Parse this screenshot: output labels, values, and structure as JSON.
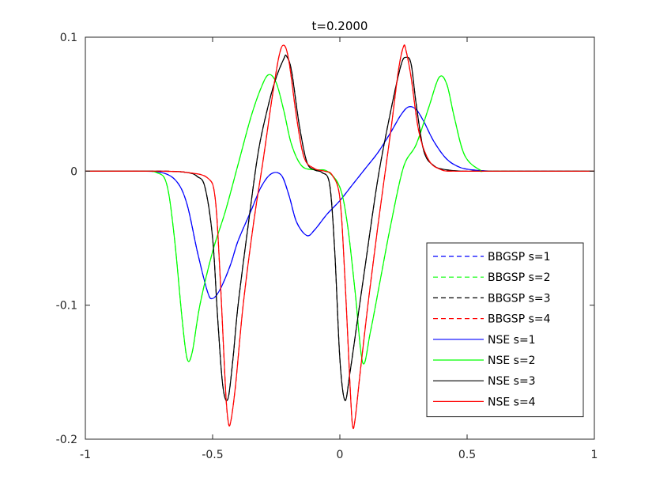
{
  "chart_data": {
    "type": "line",
    "title": "t=0.2000",
    "xlabel": "",
    "ylabel": "",
    "xlim": [
      -1,
      1
    ],
    "ylim": [
      -0.2,
      0.1
    ],
    "xticks": [
      -1,
      -0.5,
      0,
      0.5,
      1
    ],
    "xtick_labels": [
      "-1",
      "-0.5",
      "0",
      "0.5",
      "1"
    ],
    "yticks": [
      -0.2,
      -0.1,
      0,
      0.1
    ],
    "ytick_labels": [
      "-0.2",
      "-0.1",
      "0",
      "0.1"
    ],
    "grid": false,
    "legend_position": "bottom-right",
    "series": [
      {
        "name": "BBGSP s=1",
        "color": "#0000ff",
        "style": "dashed",
        "x": [
          -1,
          -0.8,
          -0.7,
          -0.64,
          -0.6,
          -0.56,
          -0.52,
          -0.5,
          -0.47,
          -0.43,
          -0.4,
          -0.35,
          -0.31,
          -0.27,
          -0.23,
          -0.2,
          -0.17,
          -0.13,
          -0.1,
          -0.05,
          0,
          0.05,
          0.1,
          0.15,
          0.2,
          0.24,
          0.27,
          0.3,
          0.33,
          0.37,
          0.42,
          0.47,
          0.52,
          0.6,
          0.7,
          1
        ],
        "y": [
          0,
          0,
          -0.001,
          -0.008,
          -0.025,
          -0.06,
          -0.09,
          -0.095,
          -0.088,
          -0.07,
          -0.052,
          -0.03,
          -0.012,
          -0.002,
          -0.003,
          -0.018,
          -0.038,
          -0.048,
          -0.044,
          -0.032,
          -0.022,
          -0.01,
          0.002,
          0.014,
          0.029,
          0.042,
          0.048,
          0.046,
          0.037,
          0.022,
          0.009,
          0.003,
          0.001,
          0,
          0,
          0
        ]
      },
      {
        "name": "BBGSP s=2",
        "color": "#00ff00",
        "style": "dashed",
        "x": [
          -1,
          -0.8,
          -0.72,
          -0.68,
          -0.65,
          -0.62,
          -0.6,
          -0.58,
          -0.55,
          -0.5,
          -0.45,
          -0.4,
          -0.35,
          -0.31,
          -0.28,
          -0.25,
          -0.22,
          -0.19,
          -0.15,
          -0.1,
          -0.05,
          0,
          0.03,
          0.06,
          0.09,
          0.12,
          0.16,
          0.2,
          0.25,
          0.3,
          0.35,
          0.39,
          0.42,
          0.45,
          0.49,
          0.55,
          0.6,
          1
        ],
        "y": [
          0,
          0,
          -0.001,
          -0.01,
          -0.05,
          -0.11,
          -0.14,
          -0.135,
          -0.1,
          -0.06,
          -0.03,
          0.005,
          0.04,
          0.062,
          0.072,
          0.066,
          0.045,
          0.02,
          0.004,
          0.001,
          0,
          -0.012,
          -0.04,
          -0.09,
          -0.143,
          -0.12,
          -0.08,
          -0.04,
          0.003,
          0.02,
          0.048,
          0.07,
          0.065,
          0.04,
          0.012,
          0.001,
          0,
          0
        ]
      },
      {
        "name": "BBGSP s=3",
        "color": "#000000",
        "style": "dashed",
        "x": [
          -1,
          -0.7,
          -0.6,
          -0.56,
          -0.53,
          -0.5,
          -0.48,
          -0.46,
          -0.44,
          -0.42,
          -0.4,
          -0.36,
          -0.32,
          -0.28,
          -0.25,
          -0.22,
          -0.21,
          -0.19,
          -0.16,
          -0.13,
          -0.1,
          -0.07,
          -0.04,
          -0.02,
          0,
          0.02,
          0.04,
          0.07,
          0.1,
          0.15,
          0.2,
          0.24,
          0.26,
          0.28,
          0.3,
          0.33,
          0.37,
          0.42,
          0.48,
          0.55,
          1
        ],
        "y": [
          0,
          0,
          -0.001,
          -0.004,
          -0.012,
          -0.05,
          -0.11,
          -0.16,
          -0.17,
          -0.14,
          -0.1,
          -0.04,
          0.015,
          0.05,
          0.07,
          0.084,
          0.086,
          0.075,
          0.035,
          0.007,
          0.001,
          -0.001,
          -0.01,
          -0.06,
          -0.14,
          -0.171,
          -0.15,
          -0.11,
          -0.07,
          -0.005,
          0.045,
          0.079,
          0.085,
          0.08,
          0.05,
          0.015,
          0.004,
          0.001,
          0,
          0,
          0
        ]
      },
      {
        "name": "BBGSP s=4",
        "color": "#ff0000",
        "style": "dashed",
        "x": [
          -1,
          -0.7,
          -0.6,
          -0.52,
          -0.49,
          -0.47,
          -0.45,
          -0.44,
          -0.43,
          -0.41,
          -0.38,
          -0.34,
          -0.3,
          -0.27,
          -0.24,
          -0.22,
          -0.2,
          -0.17,
          -0.14,
          -0.1,
          -0.06,
          -0.03,
          0,
          0.02,
          0.04,
          0.05,
          0.06,
          0.08,
          0.11,
          0.15,
          0.2,
          0.23,
          0.25,
          0.26,
          0.28,
          0.31,
          0.35,
          0.4,
          0.45,
          0.55,
          1
        ],
        "y": [
          0,
          0,
          -0.001,
          -0.005,
          -0.02,
          -0.08,
          -0.16,
          -0.185,
          -0.188,
          -0.16,
          -0.1,
          -0.04,
          0.01,
          0.05,
          0.085,
          0.094,
          0.082,
          0.04,
          0.01,
          0.002,
          0,
          -0.003,
          -0.02,
          -0.08,
          -0.16,
          -0.19,
          -0.185,
          -0.15,
          -0.1,
          -0.04,
          0.03,
          0.075,
          0.093,
          0.09,
          0.07,
          0.03,
          0.008,
          0.001,
          0,
          0,
          0
        ]
      },
      {
        "name": "NSE s=1",
        "color": "#0000ff",
        "style": "solid",
        "x": [
          -1,
          -0.8,
          -0.7,
          -0.64,
          -0.6,
          -0.56,
          -0.52,
          -0.5,
          -0.47,
          -0.43,
          -0.4,
          -0.35,
          -0.31,
          -0.27,
          -0.23,
          -0.2,
          -0.17,
          -0.13,
          -0.1,
          -0.05,
          0,
          0.05,
          0.1,
          0.15,
          0.2,
          0.24,
          0.27,
          0.3,
          0.33,
          0.37,
          0.42,
          0.47,
          0.52,
          0.6,
          0.7,
          1
        ],
        "y": [
          0,
          0,
          -0.001,
          -0.008,
          -0.025,
          -0.06,
          -0.09,
          -0.095,
          -0.088,
          -0.07,
          -0.052,
          -0.03,
          -0.012,
          -0.002,
          -0.003,
          -0.018,
          -0.038,
          -0.048,
          -0.044,
          -0.032,
          -0.022,
          -0.01,
          0.002,
          0.014,
          0.029,
          0.042,
          0.048,
          0.046,
          0.037,
          0.022,
          0.009,
          0.003,
          0.001,
          0,
          0,
          0
        ]
      },
      {
        "name": "NSE s=2",
        "color": "#00ff00",
        "style": "solid",
        "x": [
          -1,
          -0.8,
          -0.72,
          -0.68,
          -0.65,
          -0.62,
          -0.6,
          -0.58,
          -0.55,
          -0.5,
          -0.45,
          -0.4,
          -0.35,
          -0.31,
          -0.28,
          -0.25,
          -0.22,
          -0.19,
          -0.15,
          -0.1,
          -0.05,
          0,
          0.03,
          0.06,
          0.09,
          0.12,
          0.16,
          0.2,
          0.25,
          0.3,
          0.35,
          0.39,
          0.42,
          0.45,
          0.49,
          0.55,
          0.6,
          1
        ],
        "y": [
          0,
          0,
          -0.001,
          -0.01,
          -0.05,
          -0.11,
          -0.14,
          -0.135,
          -0.1,
          -0.06,
          -0.03,
          0.005,
          0.04,
          0.062,
          0.072,
          0.066,
          0.045,
          0.02,
          0.004,
          0.001,
          0,
          -0.012,
          -0.04,
          -0.09,
          -0.143,
          -0.12,
          -0.08,
          -0.04,
          0.003,
          0.02,
          0.048,
          0.07,
          0.065,
          0.04,
          0.012,
          0.001,
          0,
          0
        ]
      },
      {
        "name": "NSE s=3",
        "color": "#000000",
        "style": "solid",
        "x": [
          -1,
          -0.7,
          -0.6,
          -0.56,
          -0.53,
          -0.5,
          -0.48,
          -0.46,
          -0.44,
          -0.42,
          -0.4,
          -0.36,
          -0.32,
          -0.28,
          -0.25,
          -0.22,
          -0.21,
          -0.19,
          -0.16,
          -0.13,
          -0.1,
          -0.07,
          -0.04,
          -0.02,
          0,
          0.02,
          0.04,
          0.07,
          0.1,
          0.15,
          0.2,
          0.24,
          0.26,
          0.28,
          0.3,
          0.33,
          0.37,
          0.42,
          0.48,
          0.55,
          1
        ],
        "y": [
          0,
          0,
          -0.001,
          -0.004,
          -0.012,
          -0.05,
          -0.11,
          -0.16,
          -0.17,
          -0.14,
          -0.1,
          -0.04,
          0.015,
          0.05,
          0.07,
          0.084,
          0.086,
          0.075,
          0.035,
          0.007,
          0.001,
          -0.001,
          -0.01,
          -0.06,
          -0.14,
          -0.171,
          -0.15,
          -0.11,
          -0.07,
          -0.005,
          0.045,
          0.079,
          0.085,
          0.08,
          0.05,
          0.015,
          0.004,
          0.001,
          0,
          0,
          0
        ]
      },
      {
        "name": "NSE s=4",
        "color": "#ff0000",
        "style": "solid",
        "x": [
          -1,
          -0.7,
          -0.6,
          -0.52,
          -0.49,
          -0.47,
          -0.45,
          -0.44,
          -0.43,
          -0.41,
          -0.38,
          -0.34,
          -0.3,
          -0.27,
          -0.24,
          -0.22,
          -0.2,
          -0.17,
          -0.14,
          -0.1,
          -0.06,
          -0.03,
          0,
          0.02,
          0.04,
          0.05,
          0.06,
          0.08,
          0.11,
          0.15,
          0.2,
          0.23,
          0.25,
          0.26,
          0.28,
          0.31,
          0.35,
          0.4,
          0.45,
          0.55,
          1
        ],
        "y": [
          0,
          0,
          -0.001,
          -0.005,
          -0.02,
          -0.08,
          -0.16,
          -0.185,
          -0.188,
          -0.16,
          -0.1,
          -0.04,
          0.01,
          0.05,
          0.085,
          0.094,
          0.082,
          0.04,
          0.01,
          0.002,
          0,
          -0.003,
          -0.02,
          -0.08,
          -0.16,
          -0.19,
          -0.185,
          -0.15,
          -0.1,
          -0.04,
          0.03,
          0.075,
          0.093,
          0.09,
          0.07,
          0.03,
          0.008,
          0.001,
          0,
          0,
          0
        ]
      }
    ]
  }
}
